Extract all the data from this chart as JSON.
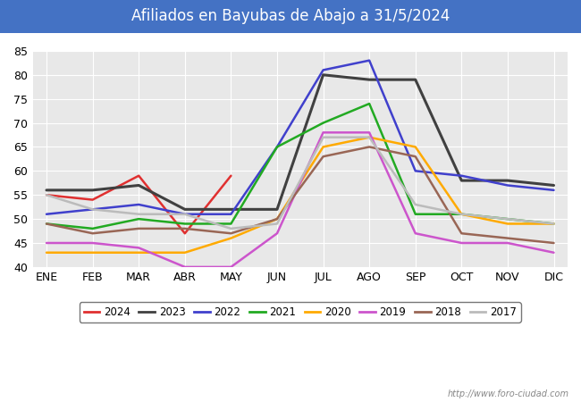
{
  "title": "Afiliados en Bayubas de Abajo a 31/5/2024",
  "title_bg_color": "#4472c4",
  "title_text_color": "white",
  "ylim": [
    40,
    85
  ],
  "yticks": [
    40,
    45,
    50,
    55,
    60,
    65,
    70,
    75,
    80,
    85
  ],
  "months": [
    "ENE",
    "FEB",
    "MAR",
    "ABR",
    "MAY",
    "JUN",
    "JUL",
    "AGO",
    "SEP",
    "OCT",
    "NOV",
    "DIC"
  ],
  "watermark": "http://www.foro-ciudad.com",
  "plot_bg_color": "#e8e8e8",
  "grid_color": "white",
  "series": [
    {
      "year": "2024",
      "color": "#e03030",
      "linewidth": 1.8,
      "data": [
        55,
        54,
        59,
        47,
        59,
        null,
        null,
        null,
        null,
        null,
        null,
        null
      ]
    },
    {
      "year": "2023",
      "color": "#404040",
      "linewidth": 2.2,
      "data": [
        56,
        56,
        57,
        52,
        52,
        52,
        80,
        79,
        79,
        58,
        58,
        57
      ]
    },
    {
      "year": "2022",
      "color": "#4040cc",
      "linewidth": 1.8,
      "data": [
        51,
        52,
        53,
        51,
        51,
        65,
        81,
        83,
        60,
        59,
        57,
        56
      ]
    },
    {
      "year": "2021",
      "color": "#22aa22",
      "linewidth": 1.8,
      "data": [
        49,
        48,
        50,
        49,
        49,
        65,
        70,
        74,
        51,
        51,
        50,
        49
      ]
    },
    {
      "year": "2020",
      "color": "#ffaa00",
      "linewidth": 1.8,
      "data": [
        43,
        43,
        43,
        43,
        46,
        50,
        65,
        67,
        65,
        51,
        49,
        49
      ]
    },
    {
      "year": "2019",
      "color": "#cc55cc",
      "linewidth": 1.8,
      "data": [
        45,
        45,
        44,
        40,
        40,
        47,
        68,
        68,
        47,
        45,
        45,
        43
      ]
    },
    {
      "year": "2018",
      "color": "#996655",
      "linewidth": 1.8,
      "data": [
        49,
        47,
        48,
        48,
        47,
        50,
        63,
        65,
        63,
        47,
        46,
        45
      ]
    },
    {
      "year": "2017",
      "color": "#bbbbbb",
      "linewidth": 1.8,
      "data": [
        55,
        52,
        51,
        51,
        48,
        49,
        67,
        67,
        53,
        51,
        50,
        49
      ]
    }
  ]
}
